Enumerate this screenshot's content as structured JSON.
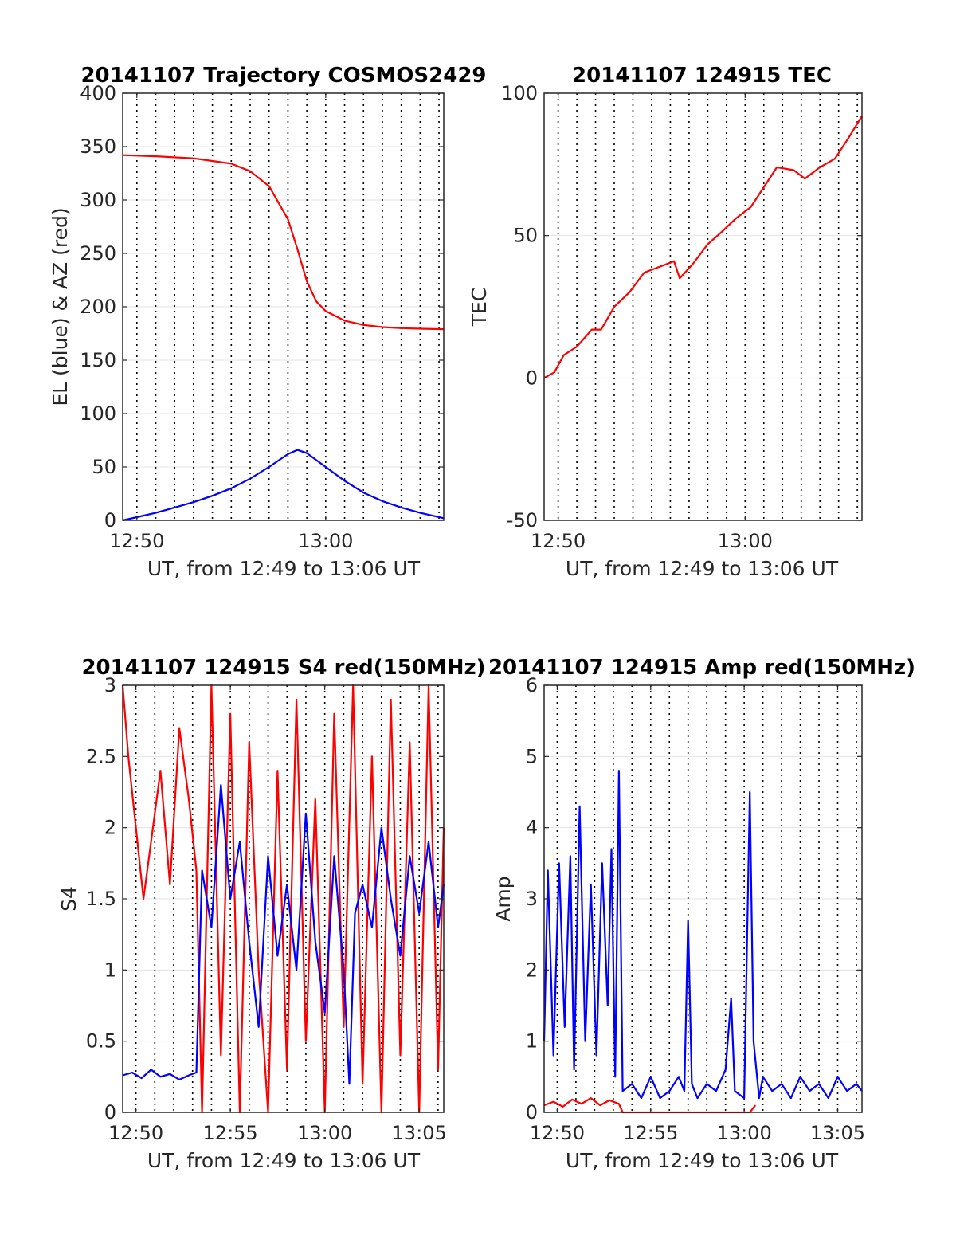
{
  "figure": {
    "panels": [
      {
        "id": "traj",
        "title": "20141107 Trajectory COSMOS2429",
        "xlabel": "UT, from 12:49 to 13:06 UT",
        "ylabel": "EL (blue) & AZ (red)"
      },
      {
        "id": "tec",
        "title": "20141107 124915 TEC",
        "xlabel": "UT, from 12:49 to 13:06 UT",
        "ylabel": "TEC"
      },
      {
        "id": "s4",
        "title": "20141107 124915 S4 red(150MHz)",
        "xlabel": "UT, from 12:49 to 13:06 UT",
        "ylabel": "S4"
      },
      {
        "id": "amp",
        "title": "20141107 124915 Amp red(150MHz)",
        "xlabel": "UT, from 12:49 to 13:06 UT",
        "ylabel": "Amp"
      }
    ]
  },
  "chart_data": [
    {
      "type": "line",
      "title": "20141107 Trajectory COSMOS2429",
      "xlabel": "UT, from 12:49 to 13:06 UT",
      "ylabel": "EL (blue) & AZ (red)",
      "x_unit": "minutes after 12:49 UT",
      "xlim": [
        0.25,
        17.25
      ],
      "ylim": [
        0,
        400
      ],
      "yticks": [
        0,
        50,
        100,
        150,
        200,
        250,
        300,
        350,
        400
      ],
      "xticks": [
        {
          "value": 1.0,
          "label": "12:50"
        },
        {
          "value": 11.0,
          "label": "13:00"
        }
      ],
      "grid": true,
      "dotted_verticals": [
        1,
        2,
        3,
        4,
        5,
        6,
        7,
        8,
        9,
        10,
        11,
        12,
        13,
        14,
        15,
        16,
        17
      ],
      "series": [
        {
          "color": "#ff0000",
          "x": [
            0.25,
            2,
            4,
            6,
            7,
            8,
            9,
            9.5,
            10,
            10.5,
            11,
            12,
            13,
            14,
            15,
            16,
            17.25
          ],
          "values": [
            342,
            341,
            339,
            334,
            327,
            313,
            282,
            254,
            224,
            205,
            196,
            187,
            183,
            181,
            180,
            179.5,
            179
          ]
        },
        {
          "color": "#0000ff",
          "x": [
            0.25,
            1,
            2,
            3,
            4,
            5,
            6,
            7,
            8,
            9,
            9.5,
            10,
            11,
            12,
            13,
            14,
            15,
            16,
            17.25
          ],
          "values": [
            0,
            3,
            7,
            12,
            17,
            23,
            30,
            39,
            50,
            62,
            66,
            63,
            50,
            37,
            26,
            18,
            12,
            7,
            2
          ]
        }
      ]
    },
    {
      "type": "line",
      "title": "20141107 124915 TEC",
      "xlabel": "UT, from 12:49 to 13:06 UT",
      "ylabel": "TEC",
      "x_unit": "minutes after 12:49 UT",
      "xlim": [
        0.25,
        17.25
      ],
      "ylim": [
        -50,
        100
      ],
      "yticks": [
        -50,
        0,
        50,
        100
      ],
      "xticks": [
        {
          "value": 1.0,
          "label": "12:50"
        },
        {
          "value": 11.0,
          "label": "13:00"
        }
      ],
      "grid": true,
      "dotted_verticals": [
        1,
        2,
        3,
        4,
        5,
        6,
        7,
        8,
        9,
        10,
        11,
        12,
        13,
        14,
        15,
        16,
        17
      ],
      "series": [
        {
          "color": "#ff0000",
          "x": [
            0.25,
            0.8,
            1.3,
            2.0,
            2.8,
            3.3,
            4.0,
            4.8,
            5.6,
            6.4,
            7.2,
            7.5,
            8.2,
            9.0,
            9.7,
            10.5,
            11.3,
            12.0,
            12.7,
            13.6,
            14.2,
            15.0,
            15.8,
            16.5,
            17.25
          ],
          "values": [
            0,
            2,
            8,
            11,
            17,
            17,
            25,
            30,
            37,
            39,
            41,
            35,
            40,
            47,
            51,
            56,
            60,
            67,
            74,
            73,
            70,
            74,
            77,
            84,
            92
          ]
        }
      ]
    },
    {
      "type": "line",
      "title": "20141107 124915 S4 red(150MHz)",
      "xlabel": "UT, from 12:49 to 13:06 UT",
      "ylabel": "S4",
      "x_unit": "minutes after 12:49 UT",
      "xlim": [
        0.3,
        17.3
      ],
      "ylim": [
        0,
        3
      ],
      "yticks": [
        0,
        0.5,
        1,
        1.5,
        2,
        2.5,
        3
      ],
      "xticks": [
        {
          "value": 1.0,
          "label": "12:50"
        },
        {
          "value": 6.0,
          "label": "12:55"
        },
        {
          "value": 11.0,
          "label": "13:00"
        },
        {
          "value": 16.0,
          "label": "13:05"
        }
      ],
      "grid": true,
      "dotted_verticals": [
        1,
        2,
        3,
        4,
        5,
        6,
        7,
        8,
        9,
        10,
        11,
        12,
        13,
        14,
        15,
        16,
        17
      ],
      "series": [
        {
          "color": "#ff0000",
          "x": [
            0.3,
            0.6,
            1.0,
            1.4,
            1.8,
            2.3,
            2.8,
            3.3,
            3.8,
            4.2,
            4.5,
            5.0,
            5.5,
            6.0,
            6.5,
            7.0,
            7.5,
            8.0,
            8.5,
            9.0,
            9.5,
            10.0,
            10.5,
            11.0,
            11.5,
            12.0,
            12.5,
            13.0,
            13.5,
            14.0,
            14.5,
            15.0,
            15.5,
            16.0,
            16.5,
            17.0,
            17.3
          ],
          "values": [
            3.0,
            2.5,
            2.0,
            1.5,
            1.9,
            2.4,
            1.6,
            2.7,
            2.2,
            1.7,
            0.0,
            3.0,
            0.4,
            2.8,
            0.0,
            2.6,
            1.0,
            0.0,
            2.4,
            0.3,
            2.9,
            0.5,
            2.2,
            0.0,
            2.8,
            0.6,
            3.0,
            0.2,
            2.5,
            0.0,
            2.9,
            0.4,
            2.6,
            0.0,
            3.0,
            0.3,
            2.0
          ]
        },
        {
          "color": "#0000ff",
          "x": [
            0.3,
            0.8,
            1.3,
            1.8,
            2.3,
            2.8,
            3.3,
            3.8,
            4.2,
            4.5,
            5.0,
            5.5,
            6.0,
            6.5,
            7.0,
            7.5,
            8.0,
            8.5,
            9.0,
            9.5,
            10.0,
            10.5,
            11.0,
            11.5,
            12.0,
            12.3,
            12.6,
            13.0,
            13.5,
            14.0,
            14.5,
            15.0,
            15.5,
            16.0,
            16.5,
            17.0,
            17.3
          ],
          "values": [
            0.26,
            0.28,
            0.24,
            0.3,
            0.25,
            0.27,
            0.23,
            0.26,
            0.28,
            1.7,
            1.3,
            2.3,
            1.5,
            1.9,
            1.2,
            0.6,
            1.8,
            1.1,
            1.6,
            1.0,
            2.1,
            1.2,
            0.7,
            1.8,
            1.0,
            0.2,
            1.4,
            1.6,
            1.3,
            2.0,
            1.5,
            1.1,
            1.8,
            1.4,
            1.9,
            1.3,
            1.6
          ]
        }
      ]
    },
    {
      "type": "line",
      "title": "20141107 124915 Amp red(150MHz)",
      "xlabel": "UT, from 12:49 to 13:06 UT",
      "ylabel": "Amp",
      "x_unit": "minutes after 12:49 UT",
      "xlim": [
        0.3,
        17.3
      ],
      "ylim": [
        0,
        6
      ],
      "yticks": [
        0,
        1,
        2,
        3,
        4,
        5,
        6
      ],
      "xticks": [
        {
          "value": 1.0,
          "label": "12:50"
        },
        {
          "value": 6.0,
          "label": "12:55"
        },
        {
          "value": 11.0,
          "label": "13:00"
        },
        {
          "value": 16.0,
          "label": "13:05"
        }
      ],
      "grid": true,
      "dotted_verticals": [
        1,
        2,
        3,
        4,
        5,
        6,
        7,
        8,
        9,
        10,
        11,
        12,
        13,
        14,
        15,
        16,
        17
      ],
      "series": [
        {
          "color": "#ff0000",
          "x": [
            0.3,
            0.8,
            1.3,
            1.8,
            2.3,
            2.8,
            3.3,
            3.8,
            4.3,
            4.5,
            11.3,
            11.6
          ],
          "values": [
            0.1,
            0.15,
            0.08,
            0.18,
            0.12,
            0.2,
            0.1,
            0.17,
            0.12,
            0.0,
            0.0,
            0.1
          ]
        },
        {
          "color": "#0000ff",
          "x": [
            0.3,
            0.5,
            0.8,
            1.1,
            1.4,
            1.7,
            1.9,
            2.2,
            2.5,
            2.8,
            3.1,
            3.4,
            3.7,
            3.9,
            4.1,
            4.3,
            4.5,
            5.0,
            5.5,
            6.0,
            6.5,
            7.0,
            7.5,
            7.8,
            8.0,
            8.2,
            8.5,
            9.0,
            9.5,
            10.0,
            10.3,
            10.5,
            11.0,
            11.3,
            11.5,
            11.8,
            12.0,
            12.5,
            13.0,
            13.5,
            14.0,
            14.5,
            15.0,
            15.5,
            16.0,
            16.5,
            17.0,
            17.3
          ],
          "values": [
            1.0,
            3.4,
            0.8,
            3.5,
            1.2,
            3.6,
            0.6,
            4.3,
            1.0,
            3.2,
            0.8,
            3.5,
            1.5,
            3.7,
            0.5,
            4.8,
            0.3,
            0.4,
            0.2,
            0.5,
            0.2,
            0.3,
            0.5,
            0.3,
            2.7,
            0.4,
            0.2,
            0.4,
            0.3,
            0.6,
            1.6,
            0.3,
            0.2,
            4.5,
            1.0,
            0.2,
            0.5,
            0.3,
            0.4,
            0.2,
            0.5,
            0.3,
            0.4,
            0.2,
            0.5,
            0.3,
            0.4,
            0.3
          ]
        }
      ]
    }
  ]
}
